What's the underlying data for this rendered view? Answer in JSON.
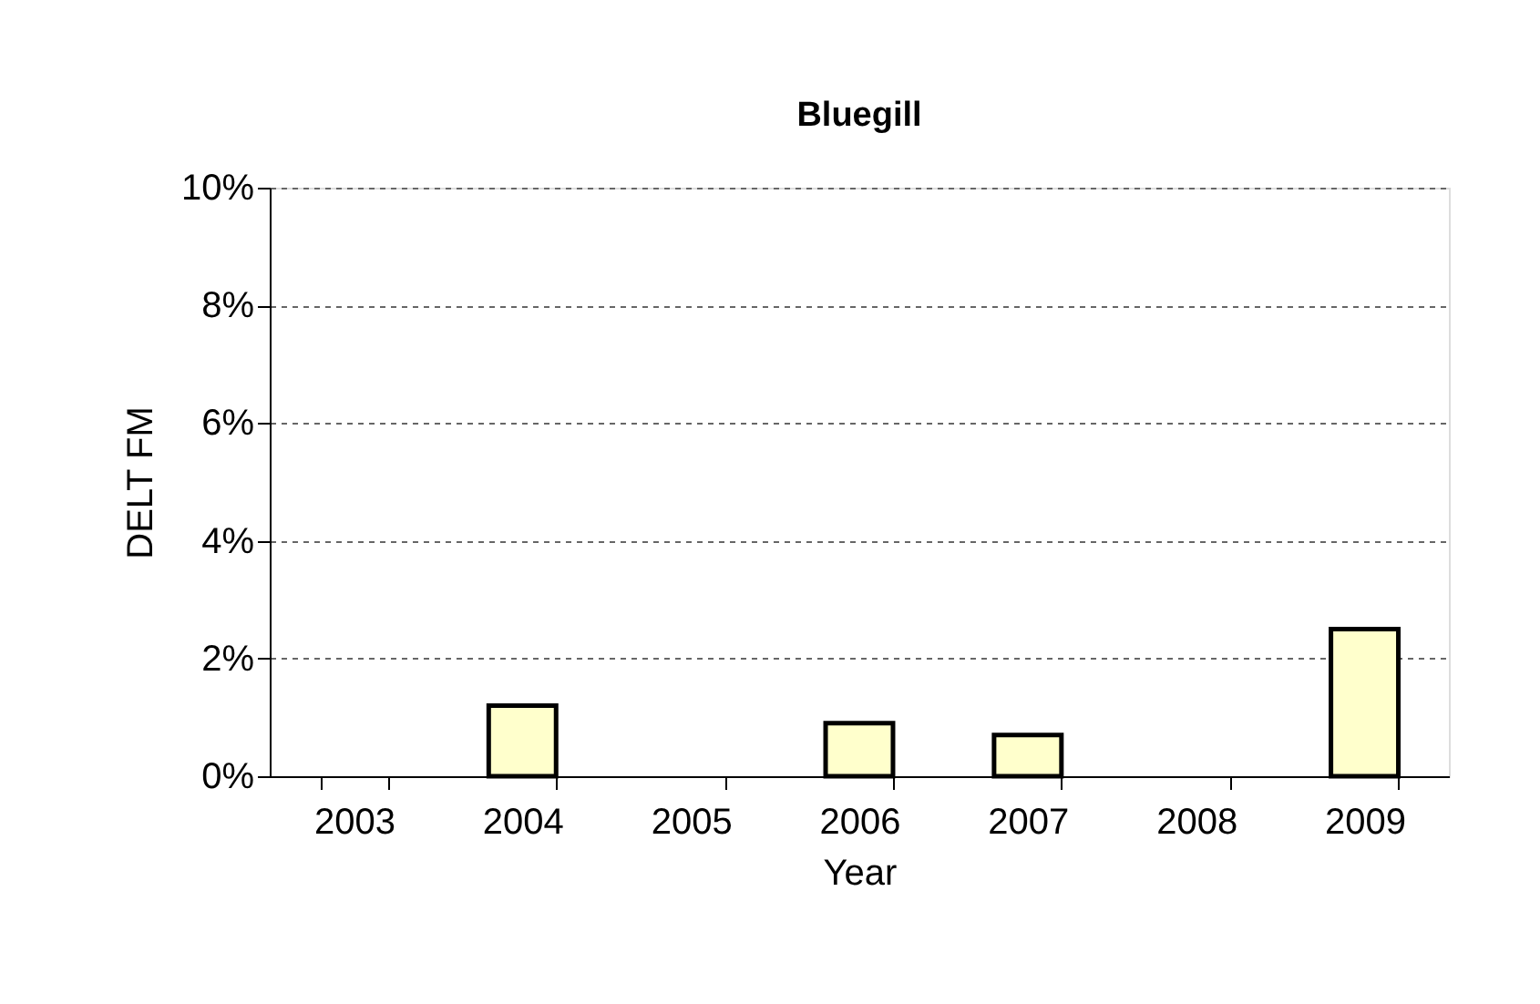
{
  "chart_data": {
    "type": "bar",
    "title": "Bluegill",
    "xlabel": "Year",
    "ylabel": "DELT FM",
    "categories": [
      "2003",
      "2004",
      "2005",
      "2006",
      "2007",
      "2008",
      "2009"
    ],
    "values": [
      null,
      1.2,
      null,
      0.9,
      0.7,
      null,
      2.5
    ],
    "color": "#ffffcc",
    "ylim": [
      0,
      10
    ],
    "yticks": [
      {
        "value": 0,
        "label": "0%"
      },
      {
        "value": 2,
        "label": "2%"
      },
      {
        "value": 4,
        "label": "4%"
      },
      {
        "value": 6,
        "label": "6%"
      },
      {
        "value": 8,
        "label": "8%"
      },
      {
        "value": 10,
        "label": "10%"
      }
    ],
    "grid": "y"
  }
}
